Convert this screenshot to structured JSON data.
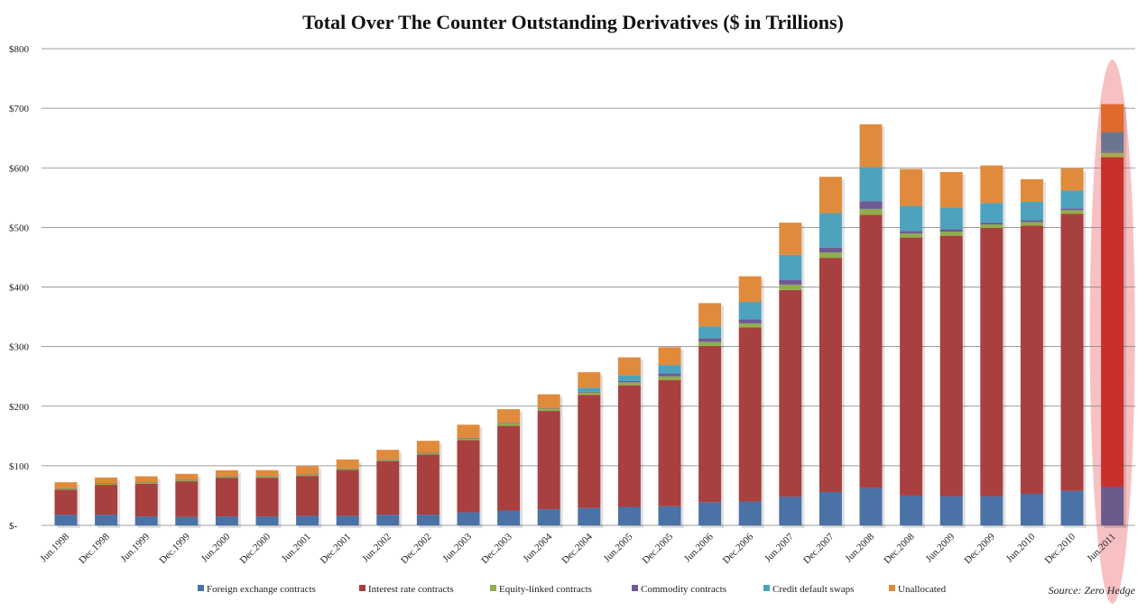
{
  "chart_data": {
    "type": "bar",
    "stacked": true,
    "title": "Total Over The Counter Outstanding Derivatives ($ in Trillions)",
    "source": "Source: Zero Hedge",
    "ylim": [
      0,
      800
    ],
    "yticks": [
      {
        "value": 0,
        "label": "$-"
      },
      {
        "value": 100,
        "label": "$100"
      },
      {
        "value": 200,
        "label": "$200"
      },
      {
        "value": 300,
        "label": "$300"
      },
      {
        "value": 400,
        "label": "$400"
      },
      {
        "value": 500,
        "label": "$500"
      },
      {
        "value": 600,
        "label": "$600"
      },
      {
        "value": 700,
        "label": "$700"
      },
      {
        "value": 800,
        "label": "$800"
      }
    ],
    "grid": true,
    "legend_position": "bottom",
    "categories": [
      "Jun.1998",
      "Dec.1998",
      "Jun.1999",
      "Dec.1999",
      "Jun.2000",
      "Dec.2000",
      "Jun.2001",
      "Dec.2001",
      "Jun.2002",
      "Dec.2002",
      "Jun.2003",
      "Dec.2003",
      "Jun.2004",
      "Dec.2004",
      "Jun.2005",
      "Dec.2005",
      "Jun.2006",
      "Dec.2006",
      "Jun.2007",
      "Dec.2007",
      "Jun.2008",
      "Dec.2008",
      "Jun.2009",
      "Dec.2009",
      "Jun.2010",
      "Dec.2010",
      "Jun.2011"
    ],
    "series": [
      {
        "name": "Foreign exchange contracts",
        "color": "#4a72a6",
        "values": [
          18,
          18,
          15,
          14,
          15,
          15,
          16,
          16,
          18,
          18,
          22,
          25,
          27,
          29,
          31,
          32,
          39,
          40,
          48,
          56,
          63,
          50,
          49,
          49,
          53,
          58,
          65
        ]
      },
      {
        "name": "Interest rate contracts",
        "color": "#a8403f",
        "values": [
          42,
          50,
          55,
          60,
          65,
          65,
          67,
          77,
          90,
          101,
          121,
          142,
          165,
          190,
          204,
          212,
          262,
          292,
          347,
          393,
          458,
          433,
          437,
          450,
          450,
          465,
          553
        ]
      },
      {
        "name": "Equity-linked contracts",
        "color": "#8fae4c",
        "values": [
          2,
          2,
          2,
          2,
          2,
          2,
          2,
          2,
          2,
          2,
          3,
          4,
          4,
          4,
          5,
          6,
          7,
          7,
          9,
          9,
          10,
          7,
          7,
          6,
          6,
          6,
          7
        ]
      },
      {
        "name": "Commodity contracts",
        "color": "#6f5a96",
        "values": [
          0.4,
          0.4,
          0.4,
          0.5,
          0.6,
          0.7,
          0.6,
          0.6,
          0.8,
          0.9,
          1,
          1,
          1,
          1,
          2,
          5,
          6,
          7,
          8,
          8,
          13,
          4,
          4,
          3,
          3,
          3,
          3
        ]
      },
      {
        "name": "Credit default swaps",
        "color": "#4da3bd",
        "values": [
          0,
          0,
          0,
          0,
          0,
          0,
          0,
          0,
          0,
          0,
          0,
          0,
          0,
          7,
          10,
          14,
          20,
          29,
          42,
          58,
          57,
          42,
          36,
          33,
          31,
          30,
          32
        ]
      },
      {
        "name": "Unallocated",
        "color": "#e08b3c",
        "values": [
          10,
          10,
          10,
          10,
          10,
          10,
          14,
          15,
          16,
          20,
          22,
          23,
          23,
          26,
          30,
          30,
          39,
          43,
          54,
          61,
          72,
          62,
          60,
          63,
          38,
          37,
          47
        ]
      }
    ],
    "highlight": {
      "category": "Jun.2011",
      "series_colors": [
        "#6c5a8a",
        "#c9302c",
        "#a2ad4c",
        "#7b6f8e",
        "#6a7690",
        "#e06a2c"
      ],
      "ellipse_color": "#f6b6b8"
    }
  }
}
